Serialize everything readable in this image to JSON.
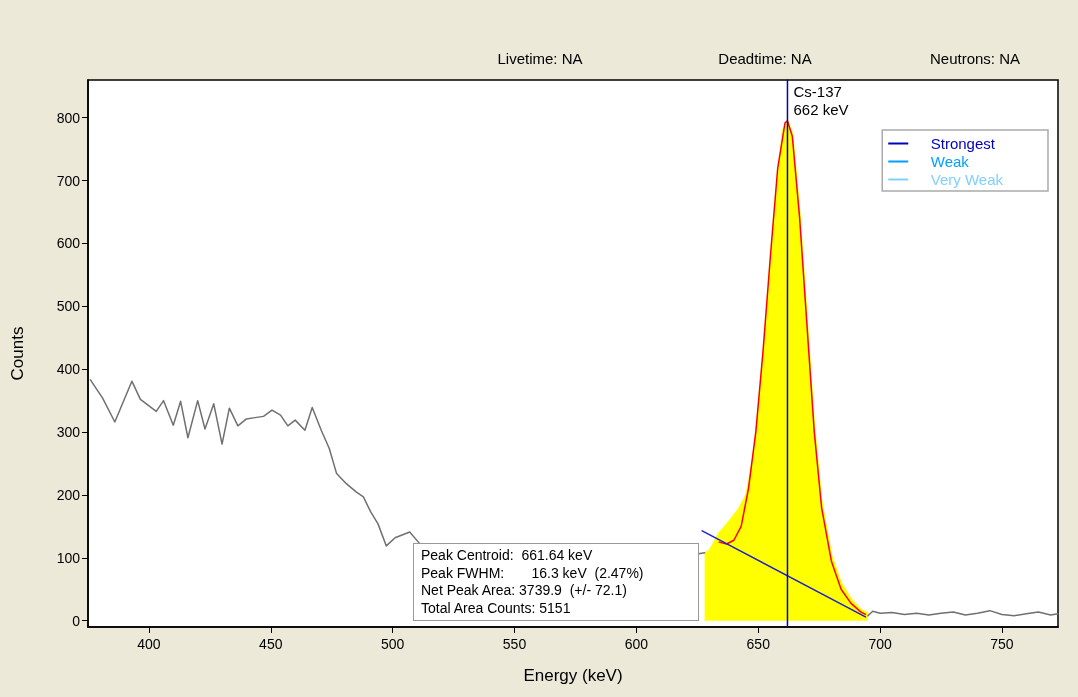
{
  "chart_data": {
    "type": "line",
    "xlabel": "Energy (keV)",
    "ylabel": "Counts",
    "xlim": [
      375,
      773
    ],
    "xticks": [
      400,
      450,
      500,
      550,
      600,
      650,
      700,
      750
    ],
    "ylim": [
      -10,
      860
    ],
    "yticks": [
      0,
      100,
      200,
      300,
      400,
      500,
      600,
      700,
      800
    ],
    "grid": false,
    "legend": "top right",
    "marker": "none",
    "annotations": [
      "Livetime: NA",
      "Deadtime: NA",
      "Neutrons: NA",
      "Peak Centroid:  661.64 keV\nPeak FWHM:       16.3 keV  (2.47%)\nNet Peak Area: 3739.9  (+/- 72.1)\nTotal Area Counts: 5151",
      {
        "text": "Cs-137\n662 keV",
        "x": 662,
        "y": 860
      }
    ],
    "series": [
      {
        "color": "#707070",
        "x": [
          376,
          381,
          386,
          393,
          396.5,
          403,
          406,
          410,
          413,
          416,
          420,
          423,
          426.6,
          430,
          433,
          436.5,
          440,
          443.5,
          447,
          450.5,
          454,
          457,
          460,
          464,
          467,
          470.7,
          474,
          477,
          481,
          485,
          488,
          491,
          494,
          497.4,
          501,
          507,
          511,
          560,
          625,
          628
        ],
        "values": [
          383,
          354,
          316,
          381,
          352,
          333,
          350,
          311,
          349,
          291,
          350,
          305,
          345,
          281,
          338,
          310,
          321,
          323,
          325,
          335,
          327,
          310,
          319,
          303,
          339,
          303,
          274,
          234,
          218,
          205,
          197,
          173,
          154,
          119,
          132,
          141,
          123,
          null,
          106,
          108
        ]
      },
      {
        "type": "area",
        "color": "#ffff00",
        "x": [
          628,
          630,
          634,
          638,
          642,
          645,
          648,
          651,
          654,
          657,
          660,
          662,
          664,
          667,
          670,
          673,
          676,
          680,
          684,
          688,
          692,
          695
        ],
        "values": [
          108,
          112,
          140,
          158,
          178,
          200,
          260,
          370,
          510,
          660,
          780,
          795,
          775,
          650,
          480,
          310,
          190,
          105,
          60,
          35,
          18,
          12
        ]
      },
      {
        "color": "#707070",
        "x": [
          695,
          697,
          700,
          705,
          710,
          715,
          720,
          725,
          730,
          735,
          740,
          745,
          750,
          755,
          760,
          765,
          770,
          773
        ],
        "values": [
          8,
          15,
          12,
          13,
          10,
          12,
          9,
          12,
          14,
          9,
          12,
          16,
          10,
          8,
          11,
          14,
          9,
          11
        ]
      },
      {
        "color": "#ff0000",
        "x": [
          634,
          637,
          640,
          643,
          646,
          649,
          652,
          655,
          658,
          661,
          662,
          664,
          667,
          670,
          673,
          676,
          680,
          684,
          688,
          692,
          694
        ],
        "values": [
          125,
          122,
          128,
          150,
          210,
          300,
          430,
          580,
          720,
          792,
          795,
          770,
          640,
          470,
          300,
          180,
          95,
          50,
          28,
          14,
          10
        ]
      },
      {
        "color": "#2020d0",
        "x": [
          627,
          694
        ],
        "values": [
          143,
          6
        ]
      },
      {
        "name": "Strongest",
        "color": "#0000c0",
        "line_style": "solid",
        "x": [
          662,
          662
        ],
        "values": [
          -10,
          860
        ]
      },
      {
        "name": "Weak",
        "color": "#00a0ff",
        "line_style": "solid"
      },
      {
        "name": "Very Weak",
        "color": "#80d0ff",
        "line_style": "dotted"
      }
    ]
  }
}
